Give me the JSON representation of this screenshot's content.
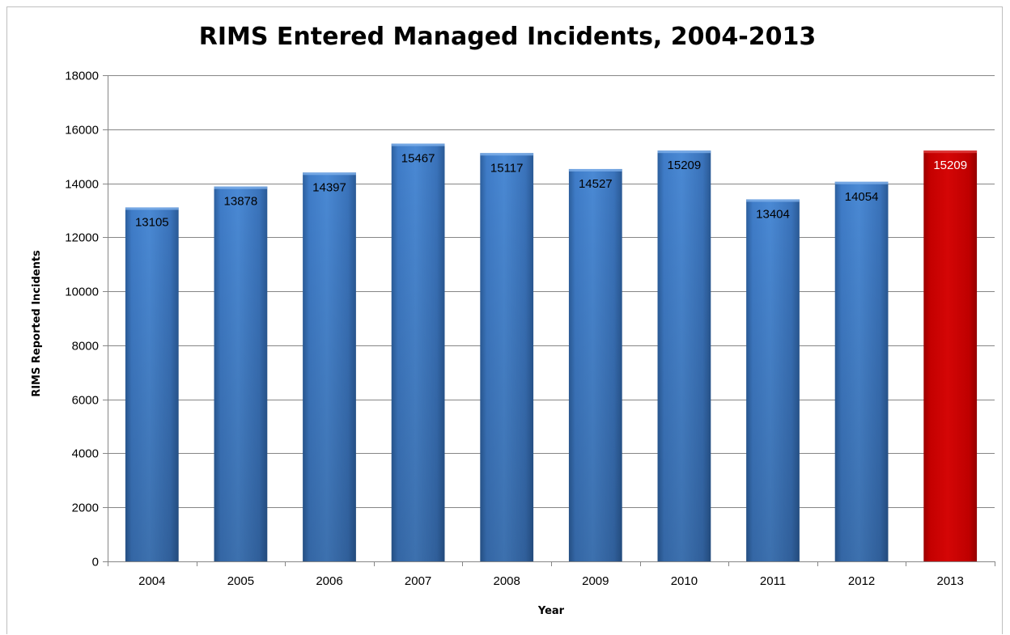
{
  "chart_data": {
    "type": "bar",
    "title": "RIMS Entered Managed Incidents, 2004-2013",
    "xlabel": "Year",
    "ylabel": "RIMS Reported Incidents",
    "categories": [
      "2004",
      "2005",
      "2006",
      "2007",
      "2008",
      "2009",
      "2010",
      "2011",
      "2012",
      "2013"
    ],
    "values": [
      13105,
      13878,
      14397,
      15467,
      15117,
      14527,
      15209,
      13404,
      14054,
      15209
    ],
    "data_labels": [
      "13105",
      "13878",
      "14397",
      "15467",
      "15117",
      "14527",
      "15209",
      "13404",
      "14054",
      "15209"
    ],
    "ylim": [
      0,
      18000
    ],
    "yticks": [
      "0",
      "2000",
      "4000",
      "6000",
      "8000",
      "10000",
      "12000",
      "14000",
      "16000",
      "18000"
    ],
    "grid": true,
    "legend": "none",
    "colors": {
      "bar": "#3d78c4",
      "highlight_bar": "#c00000",
      "highlight_category": "2013",
      "gridline": "#868686",
      "axis": "#868686"
    }
  }
}
